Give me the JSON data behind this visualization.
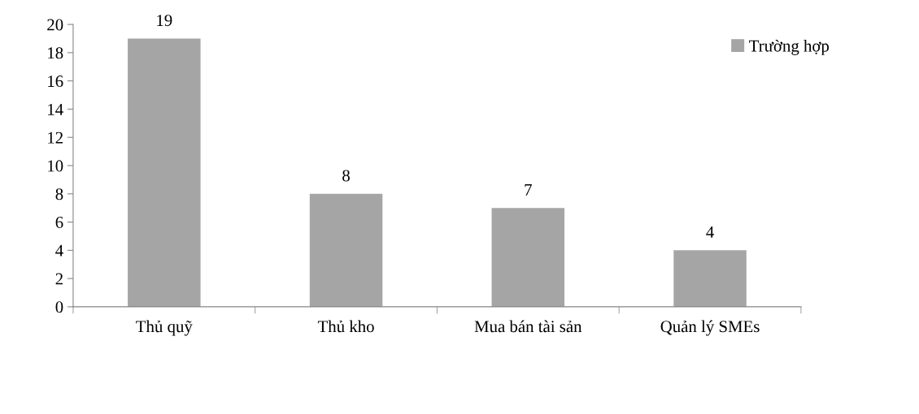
{
  "chart_data": {
    "type": "bar",
    "categories": [
      "Thủ quỹ",
      "Thủ kho",
      "Mua bán tài sản",
      "Quản lý SMEs"
    ],
    "series": [
      {
        "name": "Trường hợp",
        "color": "#a5a5a5",
        "values": [
          19,
          8,
          7,
          4
        ]
      }
    ],
    "ylim": [
      0,
      20
    ],
    "yticks": [
      0,
      2,
      4,
      6,
      8,
      10,
      12,
      14,
      16,
      18,
      20
    ],
    "data_labels": true,
    "grid": false,
    "legend": "top right"
  }
}
